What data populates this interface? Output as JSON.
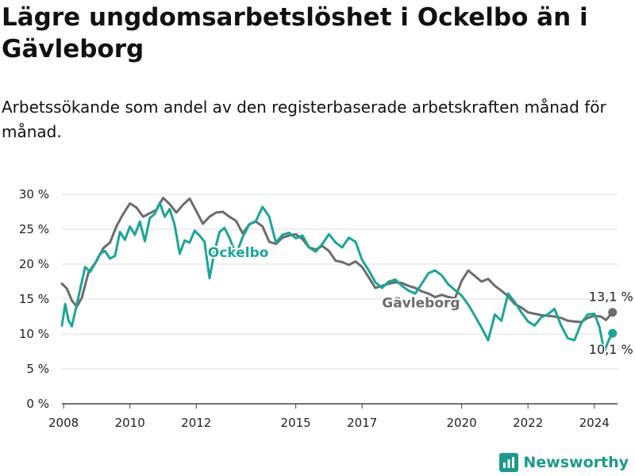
{
  "title": "Lägre ungdomsarbetslöshet i Ockelbo än i Gävleborg",
  "subtitle": "Arbetssökande som andel av den registerbaserade arbetskraften månad för månad.",
  "brand": {
    "name": "Newsworthy",
    "icon": "bar-chart-icon",
    "color": "#1b9a8a"
  },
  "chart_data": {
    "type": "line",
    "xlim": [
      2007.95,
      2024.7
    ],
    "ylim": [
      0,
      30
    ],
    "grid": true,
    "y_ticks": [
      {
        "value": 0,
        "label": "0 %"
      },
      {
        "value": 5,
        "label": "5 %"
      },
      {
        "value": 10,
        "label": "10 %"
      },
      {
        "value": 15,
        "label": "15 %"
      },
      {
        "value": 20,
        "label": "20 %"
      },
      {
        "value": 25,
        "label": "25 %"
      },
      {
        "value": 30,
        "label": "30 %"
      }
    ],
    "x_ticks": [
      {
        "value": 2008,
        "label": "2008"
      },
      {
        "value": 2010,
        "label": "2010"
      },
      {
        "value": 2012,
        "label": "2012"
      },
      {
        "value": 2015,
        "label": "2015"
      },
      {
        "value": 2017,
        "label": "2017"
      },
      {
        "value": 2020,
        "label": "2020"
      },
      {
        "value": 2022,
        "label": "2022"
      },
      {
        "value": 2024,
        "label": "2024"
      }
    ],
    "series": [
      {
        "name": "Gävleborg",
        "color": "#6b6b6b",
        "end_label": "13,1 %",
        "x": [
          2007.95,
          2008.1,
          2008.25,
          2008.4,
          2008.55,
          2008.75,
          2009.0,
          2009.2,
          2009.4,
          2009.6,
          2009.8,
          2010.0,
          2010.2,
          2010.4,
          2010.6,
          2010.8,
          2011.0,
          2011.2,
          2011.4,
          2011.6,
          2011.8,
          2012.0,
          2012.2,
          2012.4,
          2012.6,
          2012.8,
          2013.0,
          2013.2,
          2013.4,
          2013.6,
          2013.8,
          2014.0,
          2014.2,
          2014.4,
          2014.6,
          2014.8,
          2015.0,
          2015.2,
          2015.4,
          2015.6,
          2015.8,
          2016.0,
          2016.2,
          2016.4,
          2016.6,
          2016.8,
          2017.0,
          2017.2,
          2017.4,
          2017.6,
          2017.8,
          2018.0,
          2018.2,
          2018.4,
          2018.6,
          2018.8,
          2019.0,
          2019.2,
          2019.4,
          2019.6,
          2019.8,
          2020.0,
          2020.2,
          2020.4,
          2020.6,
          2020.8,
          2021.0,
          2021.2,
          2021.4,
          2021.6,
          2021.8,
          2022.0,
          2022.2,
          2022.4,
          2022.6,
          2022.8,
          2023.0,
          2023.2,
          2023.4,
          2023.6,
          2023.8,
          2024.0,
          2024.2,
          2024.35,
          2024.55
        ],
        "y": [
          17.2,
          16.5,
          14.8,
          13.9,
          15.2,
          18.8,
          20.5,
          22.3,
          23.1,
          25.5,
          27.2,
          28.7,
          28.1,
          26.8,
          27.3,
          27.8,
          29.5,
          28.6,
          27.4,
          28.5,
          29.4,
          27.6,
          25.8,
          26.8,
          27.4,
          27.5,
          26.8,
          26.2,
          24.4,
          25.7,
          26.1,
          25.4,
          23.2,
          22.9,
          23.8,
          24.1,
          24.3,
          23.6,
          22.4,
          22.1,
          22.6,
          21.9,
          20.5,
          20.3,
          19.9,
          20.4,
          19.6,
          18.1,
          16.6,
          16.9,
          17.2,
          17.4,
          17.3,
          16.9,
          16.6,
          16.1,
          15.8,
          15.3,
          15.6,
          15.3,
          15.1,
          17.6,
          19.1,
          18.3,
          17.5,
          17.9,
          16.9,
          16.2,
          15.4,
          14.3,
          13.8,
          13.1,
          12.9,
          12.7,
          12.6,
          12.5,
          12.3,
          11.9,
          11.8,
          11.7,
          12.3,
          12.6,
          12.5,
          12.0,
          13.1
        ]
      },
      {
        "name": "Ockelbo",
        "color": "#1ba596",
        "end_label": "10,1 %",
        "x": [
          2007.95,
          2008.05,
          2008.15,
          2008.25,
          2008.35,
          2008.5,
          2008.65,
          2008.8,
          2008.95,
          2009.1,
          2009.25,
          2009.4,
          2009.55,
          2009.7,
          2009.85,
          2010.0,
          2010.15,
          2010.3,
          2010.45,
          2010.6,
          2010.75,
          2010.9,
          2011.05,
          2011.2,
          2011.35,
          2011.5,
          2011.65,
          2011.8,
          2011.95,
          2012.1,
          2012.25,
          2012.4,
          2012.55,
          2012.7,
          2012.85,
          2013.0,
          2013.2,
          2013.4,
          2013.6,
          2013.8,
          2014.0,
          2014.2,
          2014.4,
          2014.6,
          2014.8,
          2015.0,
          2015.2,
          2015.4,
          2015.6,
          2015.8,
          2016.0,
          2016.2,
          2016.4,
          2016.6,
          2016.8,
          2017.0,
          2017.2,
          2017.4,
          2017.6,
          2017.8,
          2018.0,
          2018.2,
          2018.4,
          2018.6,
          2018.8,
          2019.0,
          2019.2,
          2019.4,
          2019.6,
          2019.8,
          2020.0,
          2020.2,
          2020.4,
          2020.6,
          2020.8,
          2021.0,
          2021.2,
          2021.4,
          2021.6,
          2021.8,
          2022.0,
          2022.2,
          2022.4,
          2022.6,
          2022.8,
          2023.0,
          2023.2,
          2023.4,
          2023.6,
          2023.8,
          2024.0,
          2024.15,
          2024.3,
          2024.45,
          2024.55
        ],
        "y": [
          11.2,
          14.3,
          11.9,
          11.1,
          13.2,
          16.4,
          19.6,
          18.9,
          20.1,
          21.5,
          21.9,
          20.8,
          21.2,
          24.6,
          23.5,
          25.4,
          24.2,
          26.1,
          23.3,
          26.6,
          27.2,
          28.8,
          26.8,
          27.9,
          25.6,
          21.5,
          23.4,
          23.1,
          24.8,
          24.1,
          23.2,
          18.0,
          21.8,
          24.6,
          25.2,
          23.8,
          21.4,
          23.9,
          25.7,
          26.2,
          28.2,
          26.8,
          23.1,
          24.2,
          24.5,
          23.7,
          24.1,
          22.4,
          21.8,
          22.9,
          24.3,
          23.1,
          22.4,
          23.8,
          23.2,
          20.6,
          19.1,
          17.4,
          16.6,
          17.5,
          17.8,
          16.9,
          16.2,
          15.8,
          17.2,
          18.7,
          19.1,
          18.4,
          17.1,
          16.3,
          15.5,
          14.2,
          12.6,
          10.9,
          9.1,
          12.8,
          11.9,
          15.8,
          14.6,
          13.1,
          11.8,
          11.2,
          12.4,
          12.8,
          13.6,
          11.2,
          9.4,
          9.1,
          11.5,
          12.8,
          12.9,
          11.1,
          7.5,
          9.3,
          10.1
        ]
      }
    ]
  }
}
